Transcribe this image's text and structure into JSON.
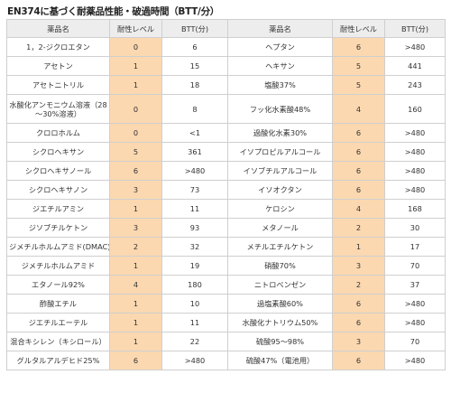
{
  "title": "EN374に基づく耐薬品性能・破過時間（BTT/分）",
  "headers": [
    "薬品名",
    "耐性レベル",
    "BTT(分)",
    "薬品名",
    "耐性レベル",
    "BTT(分)"
  ],
  "rows": [
    {
      "left": {
        "name": "1，2-ジクロエタン",
        "level": "0",
        "btt": "6"
      },
      "right": {
        "name": "ヘプタン",
        "level": "6",
        "btt": ">480"
      }
    },
    {
      "left": {
        "name": "アセトン",
        "level": "1",
        "btt": "15"
      },
      "right": {
        "name": "ヘキサン",
        "level": "5",
        "btt": "441"
      }
    },
    {
      "left": {
        "name": "アセトニトリル",
        "level": "1",
        "btt": "18"
      },
      "right": {
        "name": "塩酸37%",
        "level": "5",
        "btt": "243"
      }
    },
    {
      "left": {
        "name": "水酸化アンモニウム溶液（28～30%溶液）",
        "level": "0",
        "btt": "8"
      },
      "right": {
        "name": "フッ化水素酸48%",
        "level": "4",
        "btt": "160"
      }
    },
    {
      "left": {
        "name": "クロロホルム",
        "level": "0",
        "btt": "<1"
      },
      "right": {
        "name": "過酸化水素30%",
        "level": "6",
        "btt": ">480"
      }
    },
    {
      "left": {
        "name": "シクロヘキサン",
        "level": "5",
        "btt": "361"
      },
      "right": {
        "name": "イソプロピルアルコール",
        "level": "6",
        "btt": ">480"
      }
    },
    {
      "left": {
        "name": "シクロヘキサノール",
        "level": "6",
        "btt": ">480"
      },
      "right": {
        "name": "イソブチルアルコール",
        "level": "6",
        "btt": ">480"
      }
    },
    {
      "left": {
        "name": "シクロヘキサノン",
        "level": "3",
        "btt": "73"
      },
      "right": {
        "name": "イソオクタン",
        "level": "6",
        "btt": ">480"
      }
    },
    {
      "left": {
        "name": "ジエチルアミン",
        "level": "1",
        "btt": "11"
      },
      "right": {
        "name": "ケロシン",
        "level": "4",
        "btt": "168"
      }
    },
    {
      "left": {
        "name": "ジソブチルケトン",
        "level": "3",
        "btt": "93"
      },
      "right": {
        "name": "メタノール",
        "level": "2",
        "btt": "30"
      }
    },
    {
      "left": {
        "name": "ジメチルホルムアミド(DMAC)",
        "level": "2",
        "btt": "32"
      },
      "right": {
        "name": "メチルエチルケトン",
        "level": "1",
        "btt": "17"
      }
    },
    {
      "left": {
        "name": "ジメチルホルムアミド",
        "level": "1",
        "btt": "19"
      },
      "right": {
        "name": "硝酸70%",
        "level": "3",
        "btt": "70"
      }
    },
    {
      "left": {
        "name": "エタノール92%",
        "level": "4",
        "btt": "180"
      },
      "right": {
        "name": "ニトロベンゼン",
        "level": "2",
        "btt": "37"
      }
    },
    {
      "left": {
        "name": "酢酸エチル",
        "level": "1",
        "btt": "10"
      },
      "right": {
        "name": "過塩素酸60%",
        "level": "6",
        "btt": ">480"
      }
    },
    {
      "left": {
        "name": "ジエチルエーテル",
        "level": "1",
        "btt": "11"
      },
      "right": {
        "name": "水酸化ナトリウム50%",
        "level": "6",
        "btt": ">480"
      }
    },
    {
      "left": {
        "name": "混合キシレン（キシロール）",
        "level": "1",
        "btt": "22"
      },
      "right": {
        "name": "硫酸95～98%",
        "level": "3",
        "btt": "70"
      }
    },
    {
      "left": {
        "name": "グルタルアルデヒド25%",
        "level": "6",
        "btt": ">480"
      },
      "right": {
        "name": "硫酸47%（電池用）",
        "level": "6",
        "btt": ">480"
      }
    }
  ]
}
